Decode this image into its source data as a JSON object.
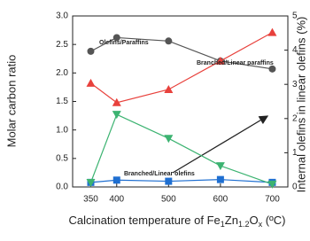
{
  "chart_data": {
    "type": "line",
    "x_label_parts": [
      "Calcination temperature of Fe",
      "1",
      "Zn",
      "1.2",
      "O",
      "x",
      " (ºC)"
    ],
    "y_label": "Molar carbon ratio",
    "y2_label": "Internal olefins in linear olefins (%)",
    "x": [
      350,
      400,
      500,
      600,
      700
    ],
    "xlim": [
      315,
      730
    ],
    "xticks": [
      350,
      400,
      500,
      600,
      700
    ],
    "ylim": [
      0,
      3
    ],
    "yticks": [
      {
        "value": 0,
        "label": "0.0"
      },
      0.5,
      {
        "value": 1,
        "label": "1.0"
      },
      1.5,
      {
        "value": 2,
        "label": "2.0"
      },
      2.5,
      {
        "value": 3,
        "label": "3.0"
      }
    ],
    "y2lim": [
      0,
      5
    ],
    "y2ticks": [
      0,
      1,
      2,
      3,
      4,
      5
    ],
    "series": [
      {
        "name": "Olefins/Paraffins",
        "color": "#555555",
        "marker": "circle",
        "values": [
          2.38,
          2.62,
          2.56,
          2.21,
          2.07
        ]
      },
      {
        "name": "Branched/Linear paraffins",
        "color": "#e8413c",
        "marker": "triangle-up",
        "values": [
          1.82,
          1.48,
          1.71,
          2.21,
          2.71
        ]
      },
      {
        "name": "Branched/Linear olefins",
        "color": "#1f6fd1",
        "marker": "square",
        "values": [
          0.08,
          0.12,
          0.1,
          0.13,
          0.08
        ]
      },
      {
        "color": "#3cb371",
        "marker": "triangle-down",
        "axis": "y2",
        "values": [
          0.13,
          2.12,
          1.42,
          0.62,
          0.08
        ]
      }
    ]
  }
}
